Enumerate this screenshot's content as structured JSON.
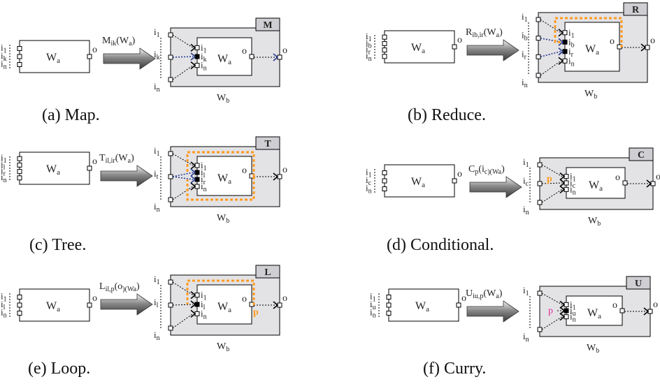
{
  "panels": [
    {
      "id": "a",
      "caption": "(a) Map.",
      "input_labels": [
        "i1",
        "ik",
        "in"
      ],
      "box_label": "Wa",
      "output_label": "o",
      "operator": "M ik(Wa)",
      "badge": "M",
      "outer_label": "Wb",
      "inner_inputs": [
        "i1",
        "ik",
        "in"
      ],
      "outer_inputs": [
        "i1",
        "ik",
        "in"
      ],
      "outer_output": "o"
    },
    {
      "id": "b",
      "caption": "(b) Reduce.",
      "input_labels": [
        "i1",
        "ib",
        "ir",
        "in"
      ],
      "box_label": "Wa",
      "output_label": "o",
      "operator": "R ib,ir(Wa)",
      "badge": "R",
      "outer_label": "Wb",
      "inner_inputs": [
        "i1",
        "ib",
        "ir",
        "in"
      ],
      "outer_inputs": [
        "i1",
        "ib",
        "ir",
        "in"
      ],
      "outer_output": "o"
    },
    {
      "id": "c",
      "caption": "(c) Tree.",
      "input_labels": [
        "i1",
        "il",
        "ir",
        "in"
      ],
      "box_label": "Wa",
      "output_label": "o",
      "operator": "T il,ir(Wa)",
      "badge": "T",
      "outer_label": "Wb",
      "inner_inputs": [
        "i1",
        "il",
        "ir",
        "in"
      ],
      "outer_inputs": [
        "i1",
        "it",
        "in"
      ],
      "outer_output": "o"
    },
    {
      "id": "d",
      "caption": "(d) Conditional.",
      "input_labels": [
        "i1",
        "ic",
        "in"
      ],
      "box_label": "Wa",
      "output_label": "o",
      "operator": "C p(ic)(Wa)",
      "badge": "C",
      "outer_label": "Wb",
      "inner_inputs": [
        "i1",
        "ic",
        "in"
      ],
      "outer_inputs": [
        "i1",
        "ic",
        "in"
      ],
      "outer_output": "o",
      "predicate": "p"
    },
    {
      "id": "e",
      "caption": "(e) Loop.",
      "input_labels": [
        "i1",
        "il",
        "in"
      ],
      "box_label": "Wa",
      "output_label": "o",
      "operator": "L il,p(o)(Wa)",
      "badge": "L",
      "outer_label": "Wb",
      "inner_inputs": [
        "i1",
        "il",
        "in"
      ],
      "outer_inputs": [
        "i1",
        "il",
        "in"
      ],
      "outer_output": "o",
      "predicate": "p"
    },
    {
      "id": "f",
      "caption": "(f) Curry.",
      "input_labels": [
        "i1",
        "iu",
        "in"
      ],
      "box_label": "Wa",
      "output_label": "o",
      "operator": "U iu,p(Wa)",
      "badge": "U",
      "outer_label": "Wb",
      "inner_inputs": [
        "i1",
        "iu",
        "in"
      ],
      "outer_inputs": [
        "i1",
        "in"
      ],
      "outer_output": "o",
      "predicate": "p"
    }
  ],
  "colors": {
    "wrapper_fill": "#e3e3e6",
    "badge_fill": "#cfcfd3",
    "loop_path": "#ff9a1f",
    "mapped_arrow": "#2b3d8f",
    "predicate_orange": "#ff9a1f",
    "predicate_pink": "#e0309a",
    "connector": "#000000"
  }
}
